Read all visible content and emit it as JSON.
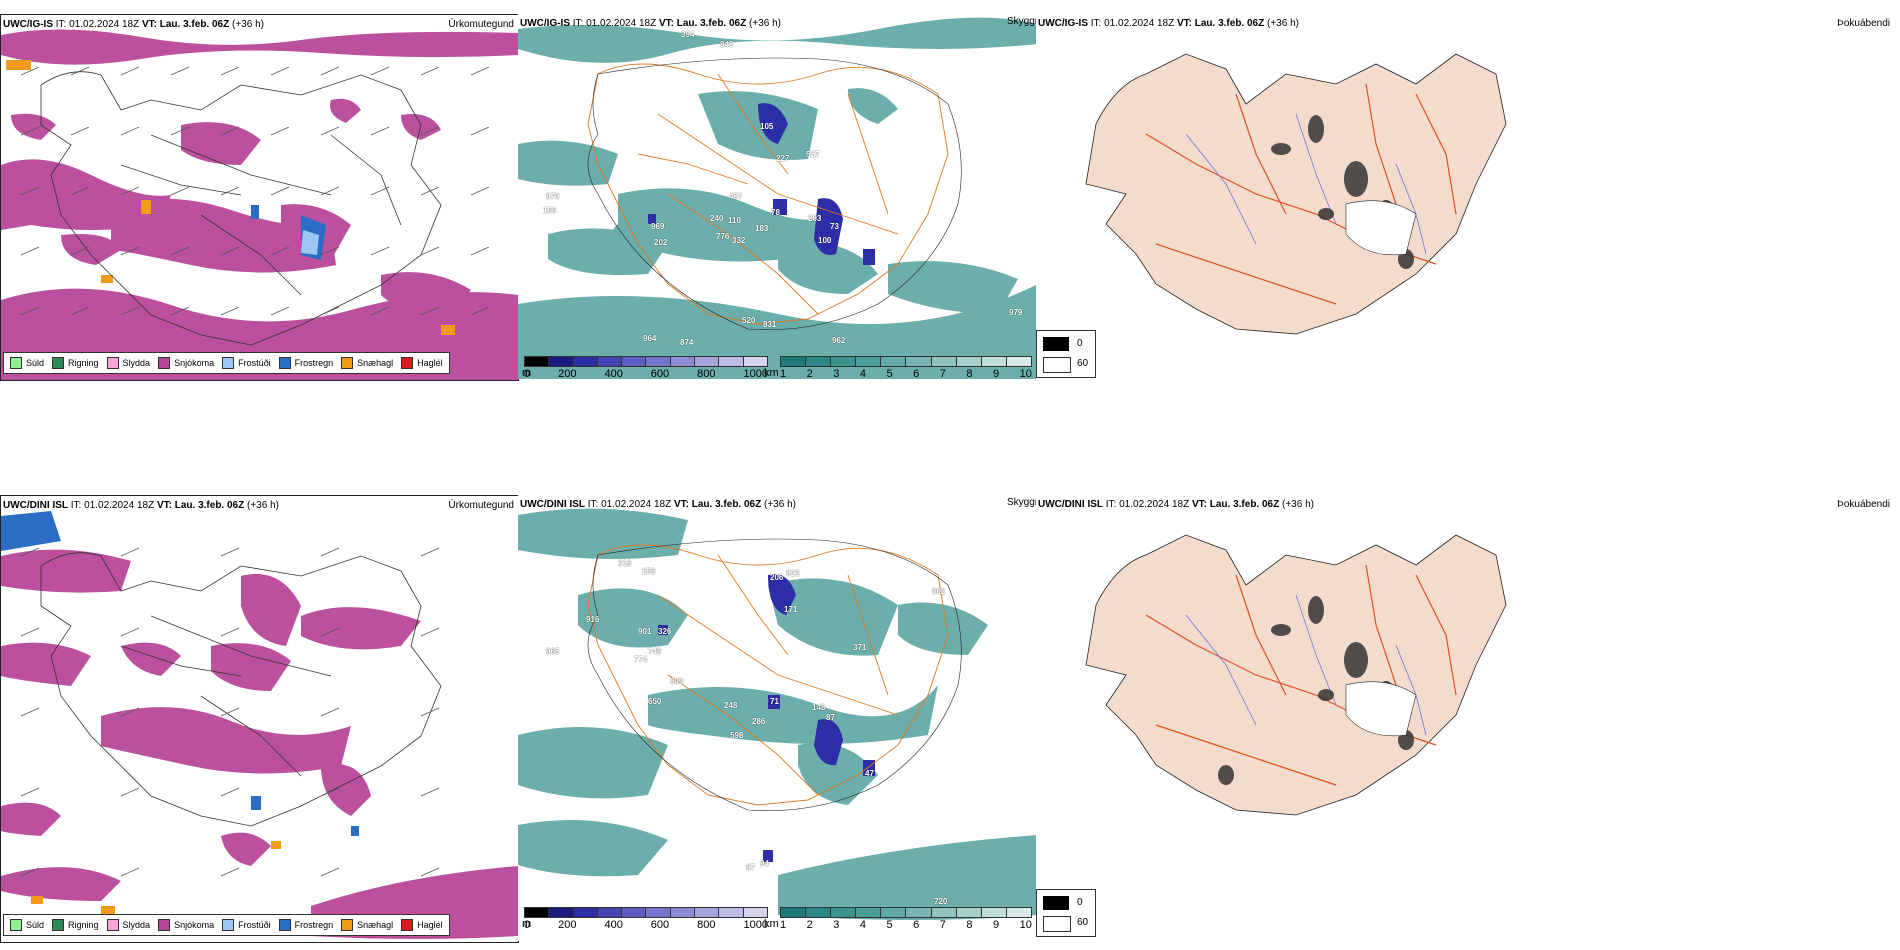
{
  "rows": [
    {
      "model": "UWC/IG-IS",
      "it_label": "IT:",
      "it_value": "01.02.2024 18Z",
      "vt_label": "VT:",
      "vt_value": "Lau. 3.feb. 06Z",
      "lead": "(+36 h)",
      "ceiling_labels": [
        "970",
        "150",
        "969",
        "202",
        "240",
        "110",
        "776",
        "332",
        "183",
        "78",
        "203",
        "73",
        "100",
        "407",
        "527",
        "964",
        "874",
        "520",
        "831",
        "962",
        "979",
        "394",
        "843",
        "105",
        "227"
      ]
    },
    {
      "model": "UWC/DINI ISL",
      "it_label": "IT:",
      "it_value": "01.02.2024 18Z",
      "vt_label": "VT:",
      "vt_value": "Lau. 3.feb. 06Z",
      "lead": "(+36 h)",
      "ceiling_labels": [
        "916",
        "965",
        "310",
        "250",
        "326",
        "901",
        "749",
        "774",
        "599",
        "650",
        "248",
        "286",
        "598",
        "71",
        "148",
        "87",
        "171",
        "206",
        "923",
        "802",
        "371",
        "47",
        "720",
        "94",
        "87"
      ]
    }
  ],
  "panel_titles": {
    "precip_type": "Úrkomutegund",
    "visibility": "Skyggni",
    "fog_band": "Þokuábendi"
  },
  "precip_legend": [
    {
      "label": "Súld",
      "color": "#90ee90"
    },
    {
      "label": "Rigning",
      "color": "#2e8b57"
    },
    {
      "label": "Slydda",
      "color": "#f4a6d7"
    },
    {
      "label": "Snjókoma",
      "color": "#b8479a"
    },
    {
      "label": "Frostúði",
      "color": "#9ec6f2"
    },
    {
      "label": "Frostregn",
      "color": "#2b6cc4"
    },
    {
      "label": "Snæhagl",
      "color": "#f29a1a"
    },
    {
      "label": "Haglél",
      "color": "#e31a1c"
    }
  ],
  "ceiling_bar": {
    "unit": "m",
    "ticks": [
      "0",
      "200",
      "400",
      "600",
      "800",
      "1000"
    ],
    "colors": [
      "#000000",
      "#1a1a80",
      "#2d2da8",
      "#4545b8",
      "#5c5cc4",
      "#7575cc",
      "#8c8cd4",
      "#a5a5dc",
      "#bcbce4",
      "#d4d4ee"
    ]
  },
  "visibility_bar": {
    "unit": "km",
    "ticks": [
      "1",
      "2",
      "3",
      "4",
      "5",
      "6",
      "7",
      "8",
      "9",
      "10"
    ],
    "colors": [
      "#1e7a78",
      "#2a8785",
      "#3a938f",
      "#4d9e99",
      "#62aaa5",
      "#78b6b1",
      "#90c3be",
      "#a8d0cb",
      "#c0ddd9",
      "#d9ebe8"
    ]
  },
  "fog_legend": {
    "top": "0",
    "bottom": "60"
  }
}
